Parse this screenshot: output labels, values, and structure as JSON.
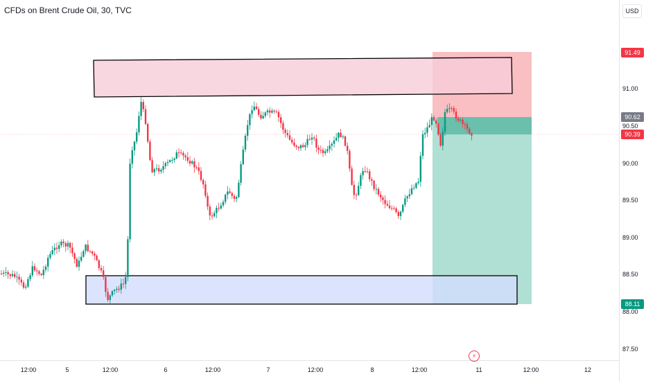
{
  "header": {
    "title": "CFDs on Brent Crude Oil, 30, TVC",
    "currency": "USD"
  },
  "price_axis": {
    "labels": [
      "91.00",
      "90.50",
      "90.00",
      "89.50",
      "89.00",
      "88.50",
      "88.00",
      "87.50"
    ],
    "tags": [
      {
        "value": "91.49",
        "color": "#f23645"
      },
      {
        "value": "90.62",
        "color": "#787b86"
      },
      {
        "value": "90.39",
        "color": "#f23645"
      },
      {
        "value": "88.11",
        "color": "#089981"
      }
    ]
  },
  "time_axis": {
    "labels": [
      "12:00",
      "5",
      "12:00",
      "6",
      "12:00",
      "7",
      "12:00",
      "8",
      "12:00",
      "11",
      "12:00",
      "12"
    ]
  },
  "colors": {
    "up": "#089981",
    "down": "#f23645",
    "supply_zone": "#f8cdd9",
    "demand_zone": "#d3ddfc",
    "stop_zone": "#f7a9ae",
    "target_zone": "#a7dccf",
    "entry_zone": "#5fbaa6"
  },
  "icons": {
    "event": "lightning-icon"
  }
}
